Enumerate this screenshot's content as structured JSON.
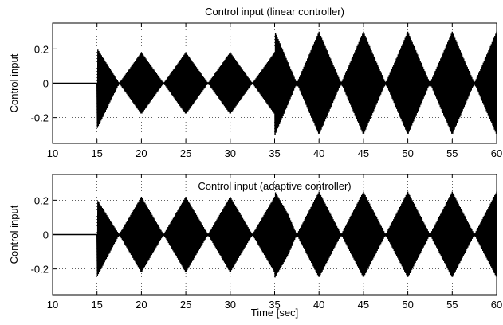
{
  "chart_data": [
    {
      "type": "line",
      "title": "Control input (linear controller)",
      "xlabel": "",
      "ylabel": "Control input",
      "xlim": [
        10,
        60
      ],
      "ylim": [
        -0.35,
        0.35
      ],
      "xticks": [
        10,
        15,
        20,
        25,
        30,
        35,
        40,
        45,
        50,
        55,
        60
      ],
      "xtick_labels": [
        "10",
        "15",
        "20",
        "25",
        "30",
        "35",
        "40",
        "45",
        "50",
        "55",
        "60"
      ],
      "yticks": [
        -0.2,
        0,
        0.2
      ],
      "ytick_labels": [
        "-0.2",
        "0",
        "0.2"
      ],
      "grid": true,
      "series": [
        {
          "color": "#000000",
          "description_points": {
            "x": [
              10,
              15,
              15.05,
              17.5,
              20,
              22.5,
              25,
              27.5,
              30,
              32.5,
              35,
              35.05,
              37.5,
              40,
              42.5,
              45,
              47.5,
              50,
              52.5,
              55,
              57.5,
              60
            ],
            "upper_envelope": [
              0,
              0,
              0.2,
              0.0,
              0.18,
              0.0,
              0.18,
              0.0,
              0.18,
              0.0,
              0.18,
              0.3,
              0.0,
              0.3,
              0.0,
              0.3,
              0.0,
              0.3,
              0.0,
              0.3,
              0.0,
              0.3
            ],
            "lower_envelope": [
              0,
              0,
              -0.26,
              0.0,
              -0.18,
              0.0,
              -0.18,
              0.0,
              -0.18,
              0.0,
              -0.18,
              -0.3,
              0.0,
              -0.3,
              0.0,
              -0.3,
              0.0,
              -0.3,
              0.0,
              -0.3,
              0.0,
              -0.3
            ]
          }
        }
      ]
    },
    {
      "type": "line",
      "title": "Control input (adaptive controller)",
      "xlabel": "Time [sec]",
      "ylabel": "Control input",
      "xlim": [
        10,
        60
      ],
      "ylim": [
        -0.35,
        0.35
      ],
      "xticks": [
        10,
        15,
        20,
        25,
        30,
        35,
        40,
        45,
        50,
        55,
        60
      ],
      "xtick_labels": [
        "10",
        "15",
        "20",
        "25",
        "30",
        "35",
        "40",
        "45",
        "50",
        "55",
        "60"
      ],
      "yticks": [
        -0.2,
        0,
        0.2
      ],
      "ytick_labels": [
        "-0.2",
        "0",
        "0.2"
      ],
      "grid": true,
      "series": [
        {
          "color": "#000000",
          "description_points": {
            "x": [
              10,
              15,
              15.05,
              17.5,
              20,
              22.5,
              25,
              27.5,
              30,
              32.5,
              35,
              35.05,
              36.5,
              37.5,
              40,
              42.5,
              45,
              47.5,
              50,
              52.5,
              55,
              57.5,
              60
            ],
            "upper_envelope": [
              0,
              0,
              0.2,
              0.0,
              0.22,
              0.0,
              0.22,
              0.0,
              0.22,
              0.0,
              0.22,
              0.25,
              0.12,
              0.0,
              0.25,
              0.0,
              0.25,
              0.0,
              0.25,
              0.0,
              0.25,
              0.0,
              0.25
            ],
            "lower_envelope": [
              0,
              0,
              -0.24,
              0.0,
              -0.22,
              0.0,
              -0.22,
              0.0,
              -0.22,
              0.0,
              -0.22,
              -0.25,
              -0.12,
              0.0,
              -0.25,
              0.0,
              -0.25,
              0.0,
              -0.25,
              0.0,
              -0.25,
              0.0,
              -0.25
            ]
          }
        }
      ]
    }
  ]
}
